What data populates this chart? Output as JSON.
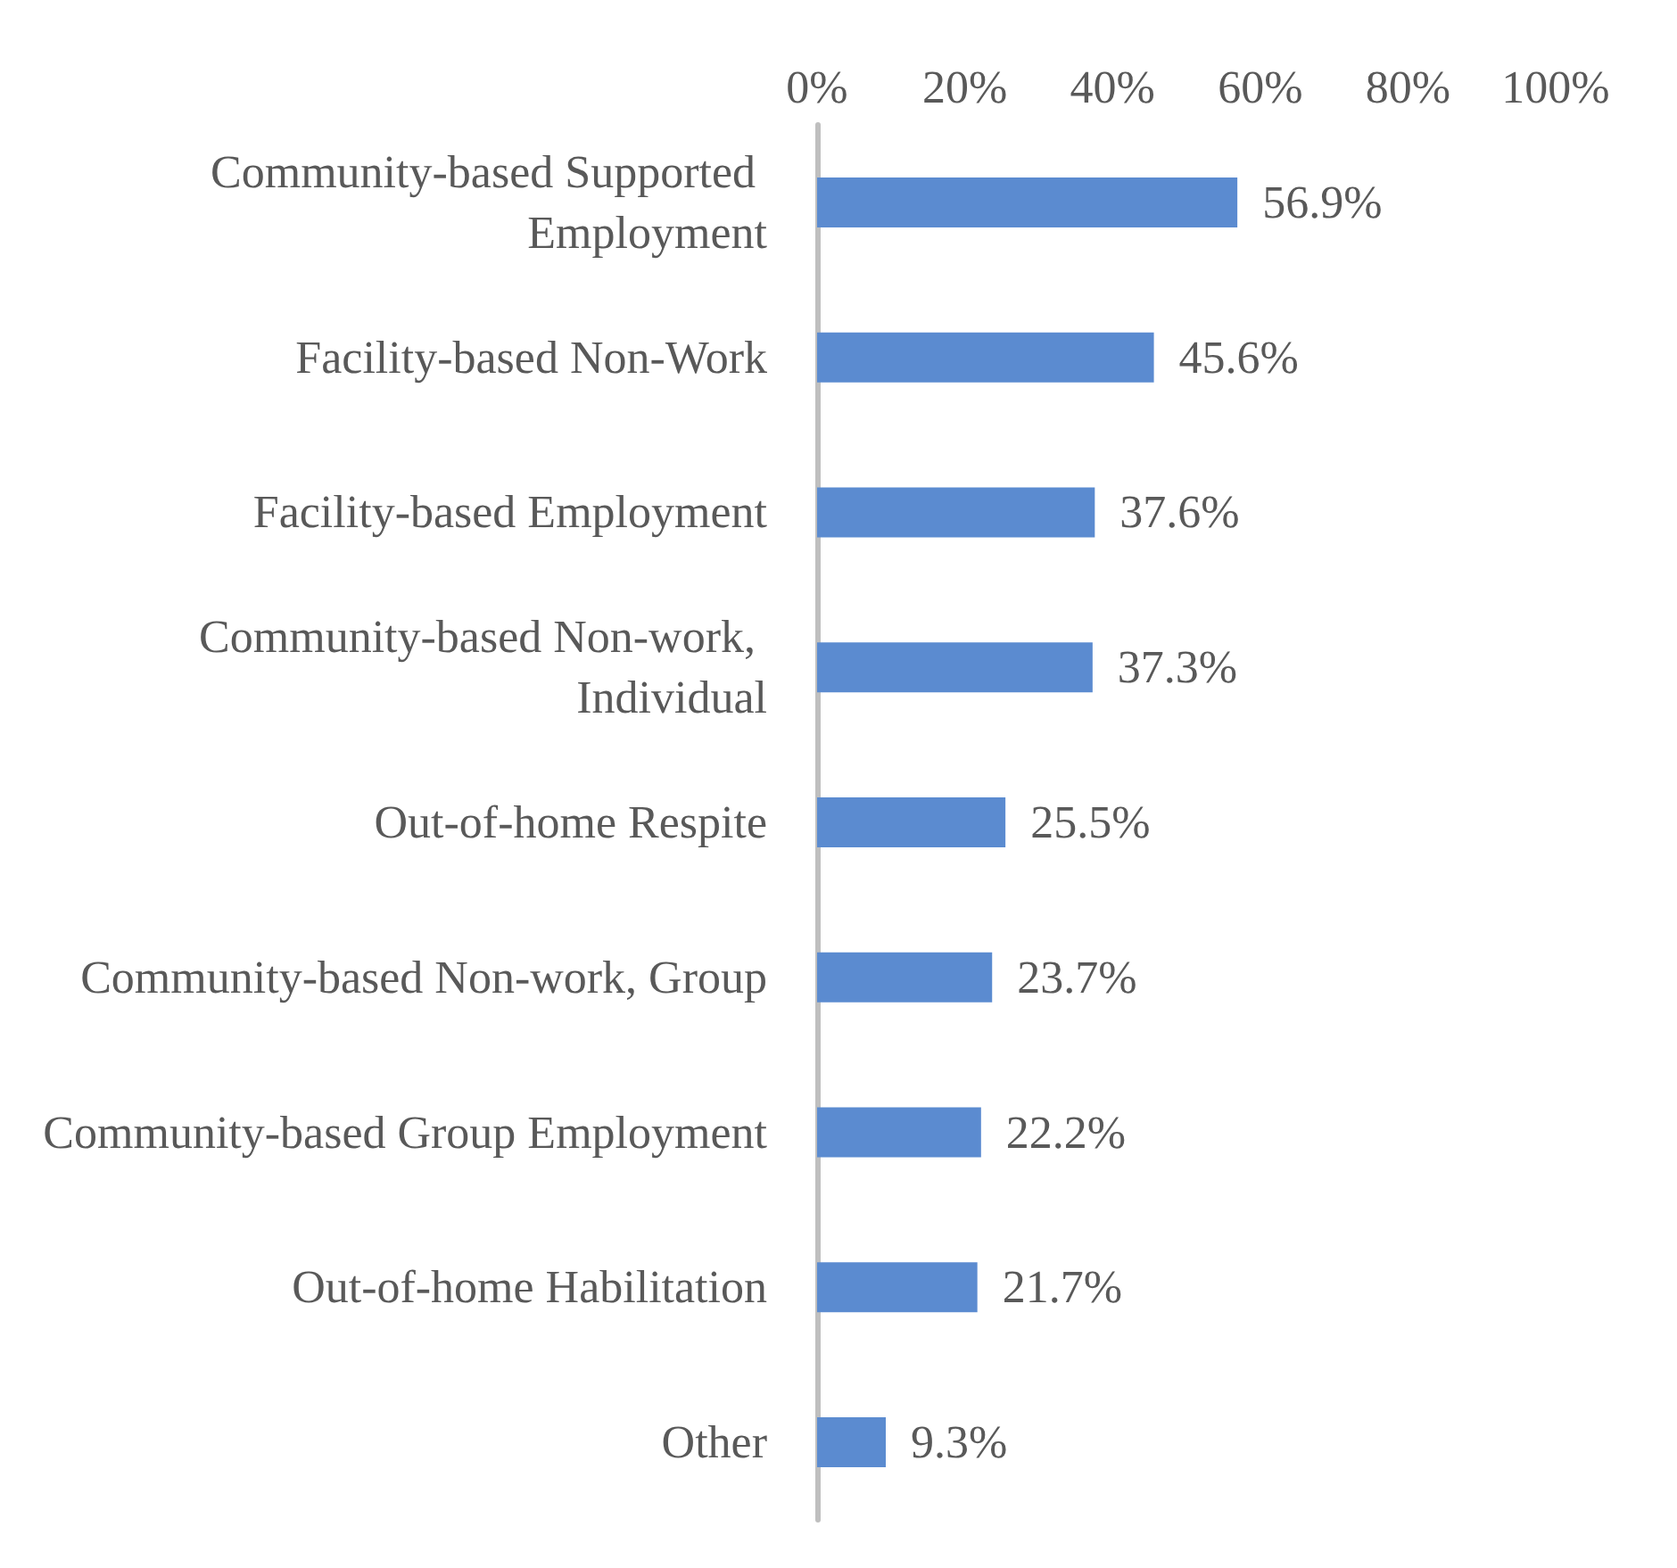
{
  "chart_data": {
    "type": "bar",
    "orientation": "horizontal",
    "categories": [
      "Community-based Supported Employment",
      "Facility-based Non-Work",
      "Facility-based Employment",
      "Community-based Non-work, Individual",
      "Out-of-home Respite",
      "Community-based Non-work, Group",
      "Community-based Group Employment",
      "Out-of-home Habilitation",
      "Other"
    ],
    "values": [
      56.9,
      45.6,
      37.6,
      37.3,
      25.5,
      23.7,
      22.2,
      21.7,
      9.3
    ],
    "value_labels": [
      "56.9%",
      "45.6%",
      "37.6%",
      "37.3%",
      "25.5%",
      "23.7%",
      "22.2%",
      "21.7%",
      "9.3%"
    ],
    "color": "#5b8bd0",
    "xlim": [
      0,
      100
    ],
    "xticks": [
      {
        "value": 0,
        "label": "0%"
      },
      {
        "value": 20,
        "label": "20%"
      },
      {
        "value": 40,
        "label": "40%"
      },
      {
        "value": 60,
        "label": "60%"
      },
      {
        "value": 80,
        "label": "80%"
      },
      {
        "value": 100,
        "label": "100%"
      }
    ],
    "grid": false
  }
}
